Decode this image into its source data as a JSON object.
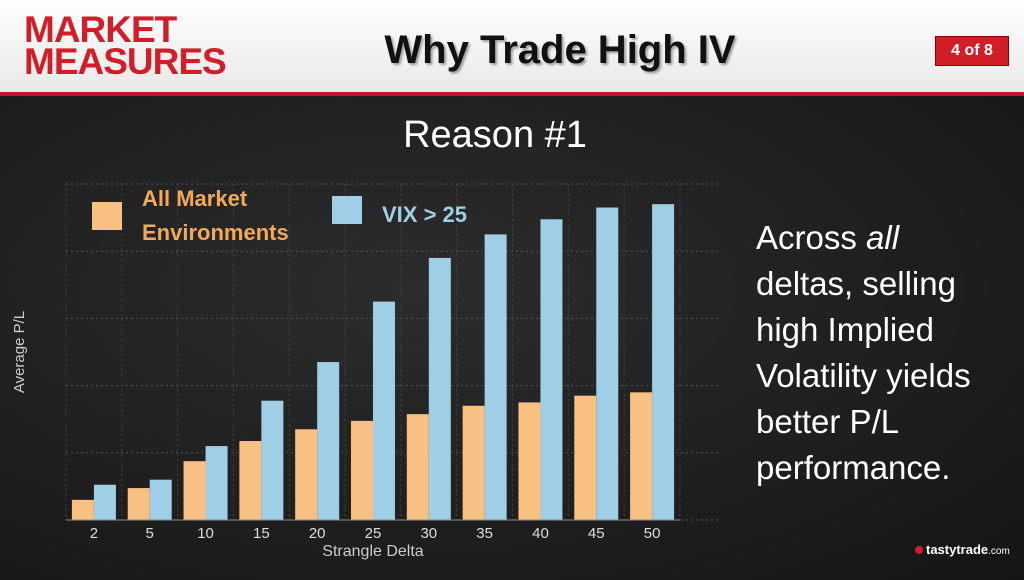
{
  "header": {
    "brand_line1": "MARKET",
    "brand_line2": "MEASURES",
    "title": "Why Trade High IV",
    "page_indicator": "4 of 8"
  },
  "subtitle": "Reason #1",
  "side_text": {
    "line1_pre": "Across ",
    "line1_em": "all",
    "rest": [
      "deltas, selling",
      "high Implied",
      "Volatility yields",
      "better P/L",
      "performance."
    ]
  },
  "logo": {
    "name": "tastytrade",
    "suffix": ".com"
  },
  "colors": {
    "series1": "#f9c084",
    "series2": "#9fcfe6",
    "legend1_text": "#f2a95a",
    "legend2_text": "#9fcfe6",
    "accent": "#d11f2a"
  },
  "chart_data": {
    "type": "bar",
    "xlabel": "Strangle Delta",
    "ylabel": "Average P/L",
    "categories": [
      "2",
      "5",
      "10",
      "15",
      "20",
      "25",
      "30",
      "35",
      "40",
      "45",
      "50"
    ],
    "series": [
      {
        "name": "All Market Environments",
        "values": [
          6,
          9.5,
          17.5,
          23.5,
          27,
          29.5,
          31.5,
          34,
          35,
          37,
          38
        ]
      },
      {
        "name": "VIX > 25",
        "values": [
          10.5,
          12,
          22,
          35.5,
          47,
          65,
          78,
          85,
          89.5,
          93,
          94
        ]
      }
    ],
    "ylim": [
      0,
      100
    ],
    "grid": true,
    "legend_position": "top-left"
  }
}
